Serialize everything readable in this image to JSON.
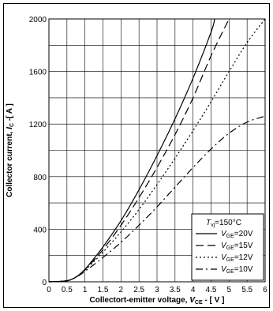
{
  "chart_data": {
    "type": "line",
    "xlim": [
      0,
      6
    ],
    "ylim": [
      0,
      2000
    ],
    "xticks": [
      "0",
      "0.5",
      "1",
      "1.5",
      "2",
      "2.5",
      "3",
      "3.5",
      "4",
      "4.5",
      "5",
      "5.5",
      "6"
    ],
    "yticks": [
      "0",
      "400",
      "800",
      "1200",
      "1600",
      "2000"
    ],
    "xlabel": {
      "main": "Collectort-emitter voltage, ",
      "sym": "V",
      "sub": "CE",
      "unit": " - [ V ]"
    },
    "ylabel": {
      "main": "Collector current, ",
      "sym": "I",
      "sub": "C",
      "unit": " -[ A ]"
    },
    "grid": true,
    "legend_position": "bottom-right",
    "legend_header": {
      "sym": "T",
      "sub": "vj",
      "rest": "=150°C"
    },
    "series": [
      {
        "name": "20V",
        "label_sym": "V",
        "label_sub": "GE",
        "label_rest": "=20V",
        "dash": "solid",
        "points": [
          [
            0,
            0
          ],
          [
            0.4,
            5
          ],
          [
            0.6,
            15
          ],
          [
            0.8,
            45
          ],
          [
            1.0,
            95
          ],
          [
            1.2,
            160
          ],
          [
            1.5,
            265
          ],
          [
            2.0,
            465
          ],
          [
            2.5,
            700
          ],
          [
            3.0,
            960
          ],
          [
            3.5,
            1240
          ],
          [
            4.0,
            1550
          ],
          [
            4.5,
            1900
          ],
          [
            4.6,
            2000
          ]
        ]
      },
      {
        "name": "15V",
        "label_sym": "V",
        "label_sub": "GE",
        "label_rest": "=15V",
        "dash": "long",
        "points": [
          [
            0,
            0
          ],
          [
            0.4,
            5
          ],
          [
            0.6,
            15
          ],
          [
            0.8,
            45
          ],
          [
            1.0,
            92
          ],
          [
            1.2,
            150
          ],
          [
            1.5,
            245
          ],
          [
            2.0,
            430
          ],
          [
            2.5,
            640
          ],
          [
            3.0,
            870
          ],
          [
            3.5,
            1120
          ],
          [
            4.0,
            1400
          ],
          [
            4.5,
            1720
          ],
          [
            5.0,
            2000
          ]
        ]
      },
      {
        "name": "12V",
        "label_sym": "V",
        "label_sub": "GE",
        "label_rest": "=12V",
        "dash": "dot",
        "points": [
          [
            0,
            0
          ],
          [
            0.4,
            5
          ],
          [
            0.6,
            15
          ],
          [
            0.8,
            45
          ],
          [
            1.0,
            88
          ],
          [
            1.2,
            140
          ],
          [
            1.5,
            225
          ],
          [
            2.0,
            380
          ],
          [
            2.5,
            550
          ],
          [
            3.0,
            740
          ],
          [
            3.5,
            940
          ],
          [
            4.0,
            1150
          ],
          [
            4.5,
            1370
          ],
          [
            5.0,
            1600
          ],
          [
            5.5,
            1820
          ],
          [
            6.0,
            2000
          ]
        ]
      },
      {
        "name": "10V",
        "label_sym": "V",
        "label_sub": "GE",
        "label_rest": "=10V",
        "dash": "dashdot",
        "points": [
          [
            0,
            0
          ],
          [
            0.4,
            5
          ],
          [
            0.6,
            15
          ],
          [
            0.8,
            42
          ],
          [
            1.0,
            80
          ],
          [
            1.2,
            120
          ],
          [
            1.5,
            185
          ],
          [
            2.0,
            300
          ],
          [
            2.5,
            430
          ],
          [
            3.0,
            570
          ],
          [
            3.5,
            720
          ],
          [
            4.0,
            870
          ],
          [
            4.5,
            1010
          ],
          [
            5.0,
            1130
          ],
          [
            5.5,
            1215
          ],
          [
            6.0,
            1260
          ]
        ]
      }
    ]
  }
}
